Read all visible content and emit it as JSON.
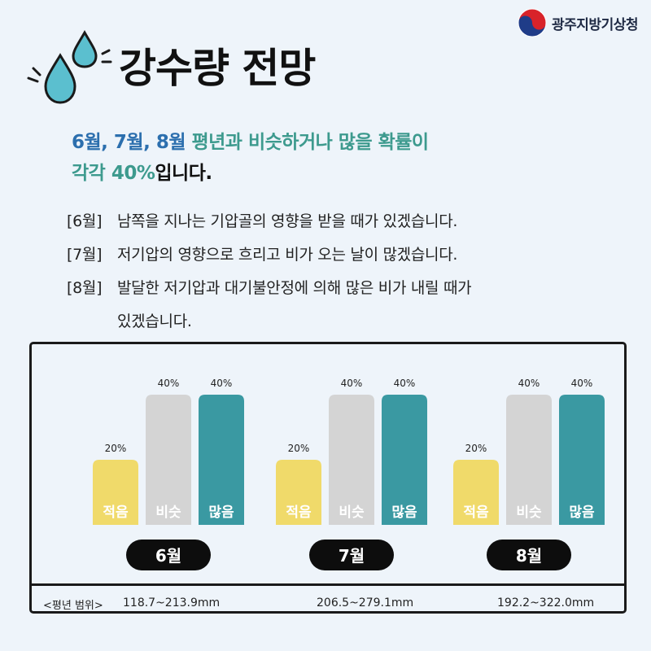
{
  "agency": {
    "name": "광주지방기상청"
  },
  "title": "강수량 전망",
  "headline": {
    "months": "6월, 7월, 8월",
    "phrase": " 평년과 비슷하거나 많을 확률이",
    "line2_prefix": "각각 ",
    "percent": "40%",
    "suffix": "입니다."
  },
  "details": [
    {
      "tag": "[6월]",
      "text": "남쪽을 지나는 기압골의 영향을 받을 때가 있겠습니다."
    },
    {
      "tag": "[7월]",
      "text": "저기압의 영향으로 흐리고 비가 오는 날이 많겠습니다."
    },
    {
      "tag": "[8월]",
      "text": "발달한 저기압과 대기불안정에 의해 많은 비가  내릴 때가",
      "cont": "있겠습니다."
    }
  ],
  "range_label": "<평년 범위>",
  "chart_data": {
    "type": "bar",
    "title": "강수량 전망",
    "categories": [
      "6월",
      "7월",
      "8월"
    ],
    "series": [
      {
        "name": "적음",
        "values": [
          20,
          20,
          20
        ],
        "color": "#f0da6a"
      },
      {
        "name": "비슷",
        "values": [
          40,
          40,
          40
        ],
        "color": "#d4d4d4"
      },
      {
        "name": "많음",
        "values": [
          40,
          40,
          40
        ],
        "color": "#3a99a2"
      }
    ],
    "value_labels": [
      "20%",
      "40%",
      "40%"
    ],
    "unit": "%",
    "ranges": [
      "118.7~213.9mm",
      "206.5~279.1mm",
      "192.2~322.0mm"
    ]
  }
}
